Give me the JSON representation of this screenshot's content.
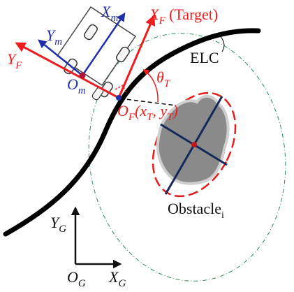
{
  "colors": {
    "target_frame": "#ee1c1c",
    "robot_frame": "#1f2fa8",
    "global_frame": "#111111",
    "path": "#000000",
    "obstacle_fill": "#8a8a8a",
    "ellipse_outline": "#e31c1c",
    "circle_outline": "#2e8b57"
  },
  "labels": {
    "xm": {
      "main": "X",
      "sub": "m"
    },
    "ym": {
      "main": "Y",
      "sub": "m"
    },
    "om": {
      "main": "O",
      "sub": "m"
    },
    "xf": {
      "main": "X",
      "sub": "F",
      "suffix": " (Target)"
    },
    "yf": {
      "main": "Y",
      "sub": "F"
    },
    "of": {
      "main": "O",
      "sub": "F",
      "coord": "(x",
      "coord_sub1": "T",
      "comma": ", y",
      "coord_sub2": "T",
      "close": ")"
    },
    "theta": {
      "main": "θ",
      "sub": "T"
    },
    "elc": "ELC",
    "obstacle": {
      "main": "Obstacle",
      "sub": "i"
    },
    "yg": {
      "main": "Y",
      "sub": "G"
    },
    "og": {
      "main": "O",
      "sub": "G"
    },
    "xg": {
      "main": "X",
      "sub": "G"
    }
  },
  "icons": {
    "robot": "mobile-robot-icon",
    "obstacle": "obstacle-blob-icon"
  }
}
